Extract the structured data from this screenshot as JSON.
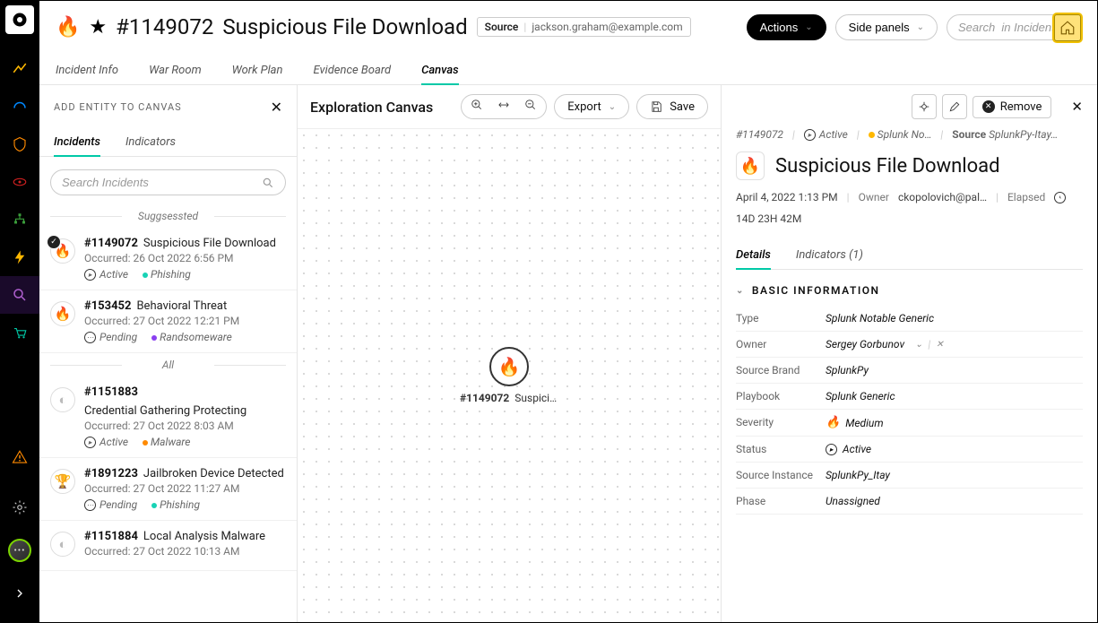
{
  "header": {
    "incident_id": "#1149072",
    "title": "Suspicious File Download",
    "source_label": "Source",
    "source_value": "jackson.graham@example.com",
    "actions_label": "Actions",
    "side_panels_label": "Side panels",
    "search_placeholder": "Search  in Incidents"
  },
  "tabs": {
    "items": [
      "Incident Info",
      "War Room",
      "Work Plan",
      "Evidence Board",
      "Canvas"
    ],
    "active": "Canvas"
  },
  "left_panel": {
    "title": "ADD ENTITY TO CANVAS",
    "subtabs": [
      "Incidents",
      "Indicators"
    ],
    "subtab_active": "Incidents",
    "search_placeholder": "Search Incidents",
    "section_suggested": "Suggsessted",
    "section_all": "All",
    "incidents": [
      {
        "section": "suggested",
        "id": "#1149072",
        "name": "Suspicious File Download",
        "occurred": "Occurred: 26 Oct 2022 6:56 PM",
        "status": "Active",
        "status_icon": "active",
        "tag": "Phishing",
        "tag_color": "#18d2b5",
        "icon": "🔥",
        "selected": true
      },
      {
        "section": "suggested",
        "id": "#153452",
        "name": "Behavioral Threat",
        "occurred": "Occurred: 27 Oct 2022 12:21 PM",
        "status": "Pending",
        "status_icon": "pending",
        "tag": "Randsomeware",
        "tag_color": "#8a3ff0",
        "icon": "🔥",
        "selected": false
      },
      {
        "section": "all",
        "id": "#1151883",
        "name": "Credential Gathering Protecting",
        "occurred": "Occurred: 27 Oct 2022 8:03 AM",
        "status": "Active",
        "status_icon": "active",
        "tag": "Malware",
        "tag_color": "#ff8a00",
        "icon": "◐",
        "selected": false
      },
      {
        "section": "all",
        "id": "#1891223",
        "name": "Jailbroken Device Detected",
        "occurred": "Occurred: 27 Oct 2022 11:27 AM",
        "status": "Pending",
        "status_icon": "pending",
        "tag": "Phishing",
        "tag_color": "#18d2b5",
        "icon": "🏆",
        "icon_color": "#c02020",
        "selected": false
      },
      {
        "section": "all",
        "id": "#1151884",
        "name": "Local Analysis Malware",
        "occurred": "Occurred: 27 Oct 2022 10:13 AM",
        "status": "",
        "status_icon": "",
        "tag": "",
        "tag_color": "",
        "icon": "◐",
        "selected": false
      }
    ]
  },
  "canvas": {
    "title": "Exploration Canvas",
    "export_label": "Export",
    "save_label": "Save",
    "node_id": "#1149072",
    "node_label": "Suspiciou…"
  },
  "right_panel": {
    "remove_label": "Remove",
    "meta_id": "#1149072",
    "meta_status": "Active",
    "meta_splunk": "Splunk No…",
    "meta_source_label": "Source",
    "meta_source_value": "SplunkPy-Itay…",
    "title": "Suspicious File Download",
    "timestamp": "April 4, 2022 1:13 PM",
    "owner_label": "Owner",
    "owner_value": "ckopolovich@pal…",
    "elapsed_label": "Elapsed",
    "elapsed_value": "14D 23H 42M",
    "tabs": [
      "Details",
      "Indicators (1)"
    ],
    "tab_active": "Details",
    "section_basic": "BASIC INFORMATION",
    "fields": [
      {
        "k": "Type",
        "v": "Splunk Notable Generic",
        "extra": ""
      },
      {
        "k": "Owner",
        "v": "Sergey Gorbunov",
        "extra": "dropdown"
      },
      {
        "k": "Source Brand",
        "v": "SplunkPy",
        "extra": ""
      },
      {
        "k": "Playbook",
        "v": "Splunk Generic",
        "extra": ""
      },
      {
        "k": "Severity",
        "v": "Medium",
        "extra": "severity"
      },
      {
        "k": "Status",
        "v": "Active",
        "extra": "status"
      },
      {
        "k": "Source Instance",
        "v": "SplunkPy_Itay",
        "extra": ""
      },
      {
        "k": "Phase",
        "v": "Unassigned",
        "extra": ""
      }
    ]
  },
  "colors": {
    "accent": "#00c9a7",
    "fire": "#ff7a00"
  }
}
